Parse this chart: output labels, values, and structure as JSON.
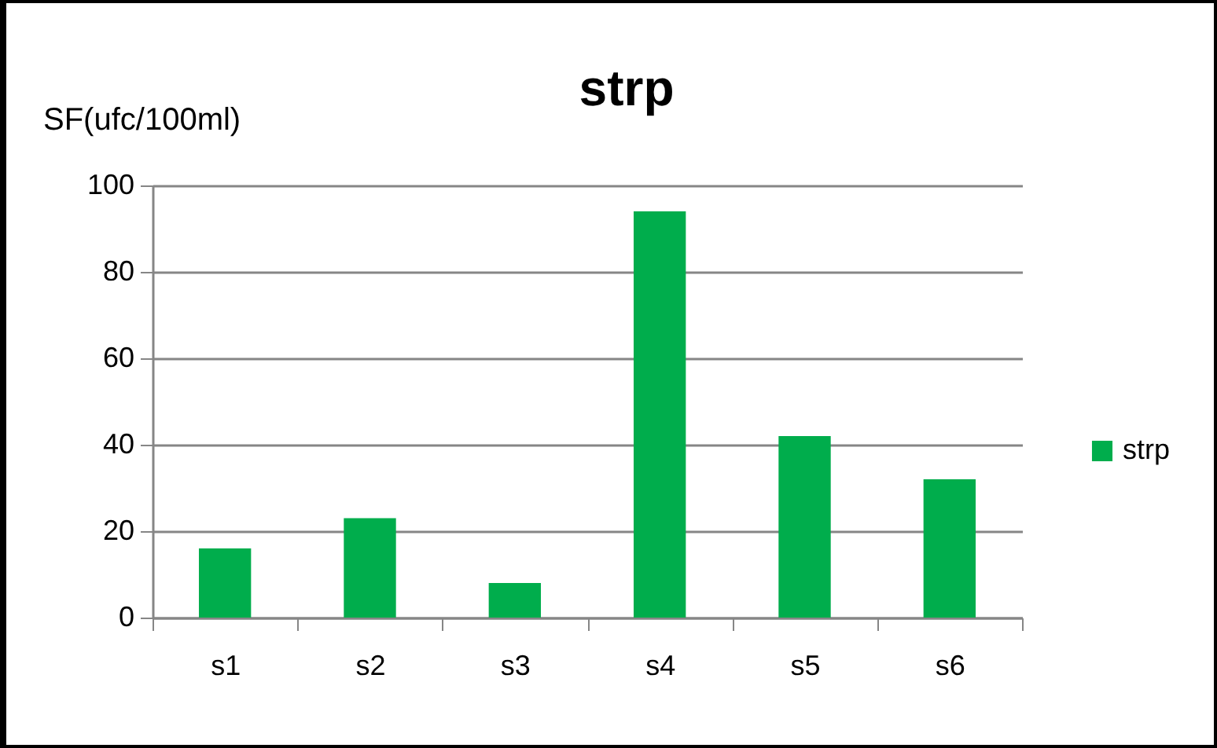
{
  "chart_data": {
    "type": "bar",
    "title": "strp",
    "ylabel": "SF(ufc/100ml)",
    "categories": [
      "s1",
      "s2",
      "s3",
      "s4",
      "s5",
      "s6"
    ],
    "series": [
      {
        "name": "strp",
        "color": "#00ad4c",
        "values": [
          16,
          23,
          8,
          94,
          42,
          32
        ]
      }
    ],
    "ylim": [
      0,
      100
    ],
    "yticks": [
      0,
      20,
      40,
      60,
      80,
      100
    ],
    "grid": "y",
    "legend": "right"
  }
}
